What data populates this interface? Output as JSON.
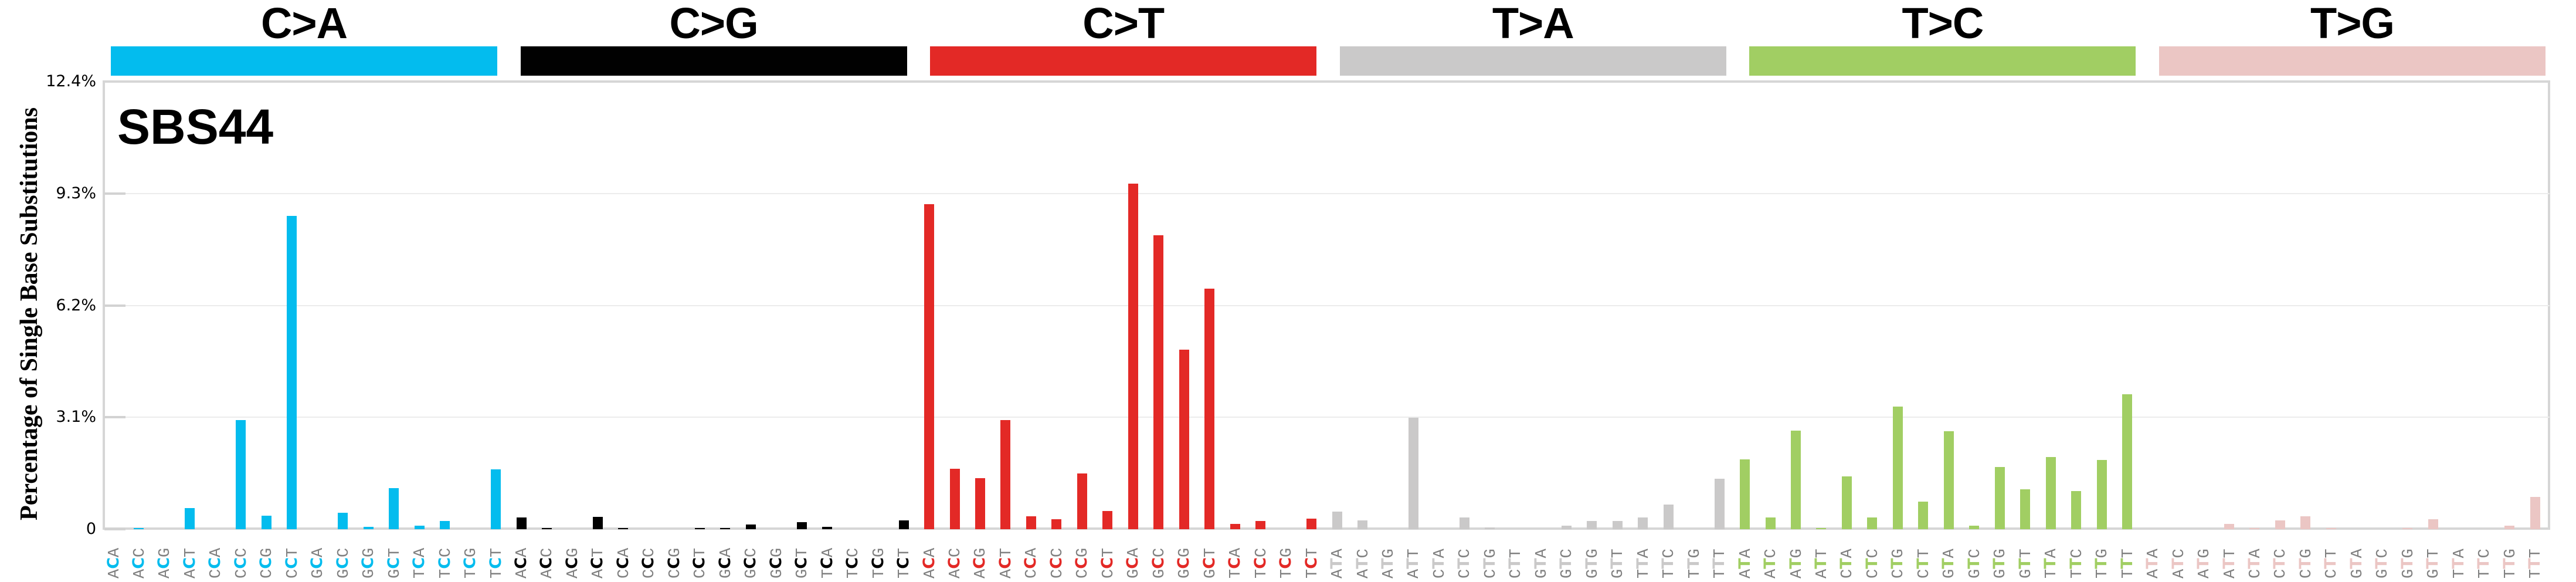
{
  "chart_data": {
    "type": "bar",
    "title": "SBS44",
    "xlabel": "",
    "ylabel": "Percentage of Single Base Substitutions",
    "ylim": [
      0,
      12.4
    ],
    "yticks": [
      "0",
      "3.1%",
      "6.2%",
      "9.3%",
      "12.4%"
    ],
    "ytick_values": [
      0,
      3.1,
      6.2,
      9.3,
      12.4
    ],
    "grid": true,
    "legend": null,
    "groups": [
      {
        "name": "C>A",
        "color": "#03BCEE",
        "ref": "C",
        "contexts": [
          "ACA",
          "ACC",
          "ACG",
          "ACT",
          "CCA",
          "CCC",
          "CCG",
          "CCT",
          "GCA",
          "GCC",
          "GCG",
          "GCT",
          "TCA",
          "TCC",
          "TCG",
          "TCT"
        ],
        "values": [
          0.0,
          0.01,
          0.0,
          0.58,
          0.0,
          3.03,
          0.37,
          8.68,
          0.0,
          0.46,
          0.06,
          1.13,
          0.09,
          0.22,
          0.0,
          1.66
        ]
      },
      {
        "name": "C>G",
        "color": "#010101",
        "ref": "C",
        "contexts": [
          "ACA",
          "ACC",
          "ACG",
          "ACT",
          "CCA",
          "CCC",
          "CCG",
          "CCT",
          "GCA",
          "GCC",
          "GCG",
          "GCT",
          "TCA",
          "TCC",
          "TCG",
          "TCT"
        ],
        "values": [
          0.32,
          0.02,
          0.0,
          0.34,
          0.01,
          0.0,
          0.0,
          0.01,
          0.02,
          0.13,
          0.0,
          0.19,
          0.06,
          0.0,
          0.0,
          0.25
        ]
      },
      {
        "name": "C>T",
        "color": "#E32926",
        "ref": "C",
        "contexts": [
          "ACA",
          "ACC",
          "ACG",
          "ACT",
          "CCA",
          "CCC",
          "CCG",
          "CCT",
          "GCA",
          "GCC",
          "GCG",
          "GCT",
          "TCA",
          "TCC",
          "TCG",
          "TCT"
        ],
        "values": [
          9.0,
          1.68,
          1.42,
          3.03,
          0.35,
          0.28,
          1.55,
          0.5,
          9.57,
          8.15,
          4.97,
          6.67,
          0.14,
          0.22,
          0.0,
          0.3
        ]
      },
      {
        "name": "T>A",
        "color": "#CAC9C9",
        "ref": "T",
        "contexts": [
          "ATA",
          "ATC",
          "ATG",
          "ATT",
          "CTA",
          "CTC",
          "CTG",
          "CTT",
          "GTA",
          "GTC",
          "GTG",
          "GTT",
          "TTA",
          "TTC",
          "TTG",
          "TTT"
        ],
        "values": [
          0.48,
          0.25,
          0.0,
          3.09,
          0.0,
          0.32,
          0.05,
          0.0,
          0.0,
          0.1,
          0.23,
          0.22,
          0.32,
          0.69,
          0.0,
          1.39
        ]
      },
      {
        "name": "T>C",
        "color": "#A1CE63",
        "ref": "T",
        "contexts": [
          "ATA",
          "ATC",
          "ATG",
          "ATT",
          "CTA",
          "CTC",
          "CTG",
          "CTT",
          "GTA",
          "GTC",
          "GTG",
          "GTT",
          "TTA",
          "TTC",
          "TTG",
          "TTT"
        ],
        "values": [
          1.93,
          0.32,
          2.73,
          0.02,
          1.46,
          0.32,
          3.4,
          0.77,
          2.71,
          0.1,
          1.73,
          1.11,
          2.0,
          1.05,
          1.91,
          3.73
        ]
      },
      {
        "name": "T>G",
        "color": "#EBC6C4",
        "ref": "T",
        "contexts": [
          "ATA",
          "ATC",
          "ATG",
          "ATT",
          "CTA",
          "CTC",
          "CTG",
          "CTT",
          "GTA",
          "GTC",
          "GTG",
          "GTT",
          "TTA",
          "TTC",
          "TTG",
          "TTT"
        ],
        "values": [
          0.0,
          0.0,
          0.0,
          0.14,
          0.02,
          0.25,
          0.35,
          0.04,
          0.0,
          0.0,
          0.01,
          0.28,
          0.0,
          0.0,
          0.09,
          0.9
        ]
      }
    ]
  },
  "signature": {
    "name": "SBS44"
  },
  "axis": {
    "ylabel": "Percentage of Single Base Substitutions"
  },
  "colors": {
    "axis": "#D6D6D6",
    "grid": "#ECECEC",
    "flank_text": "#808080"
  }
}
